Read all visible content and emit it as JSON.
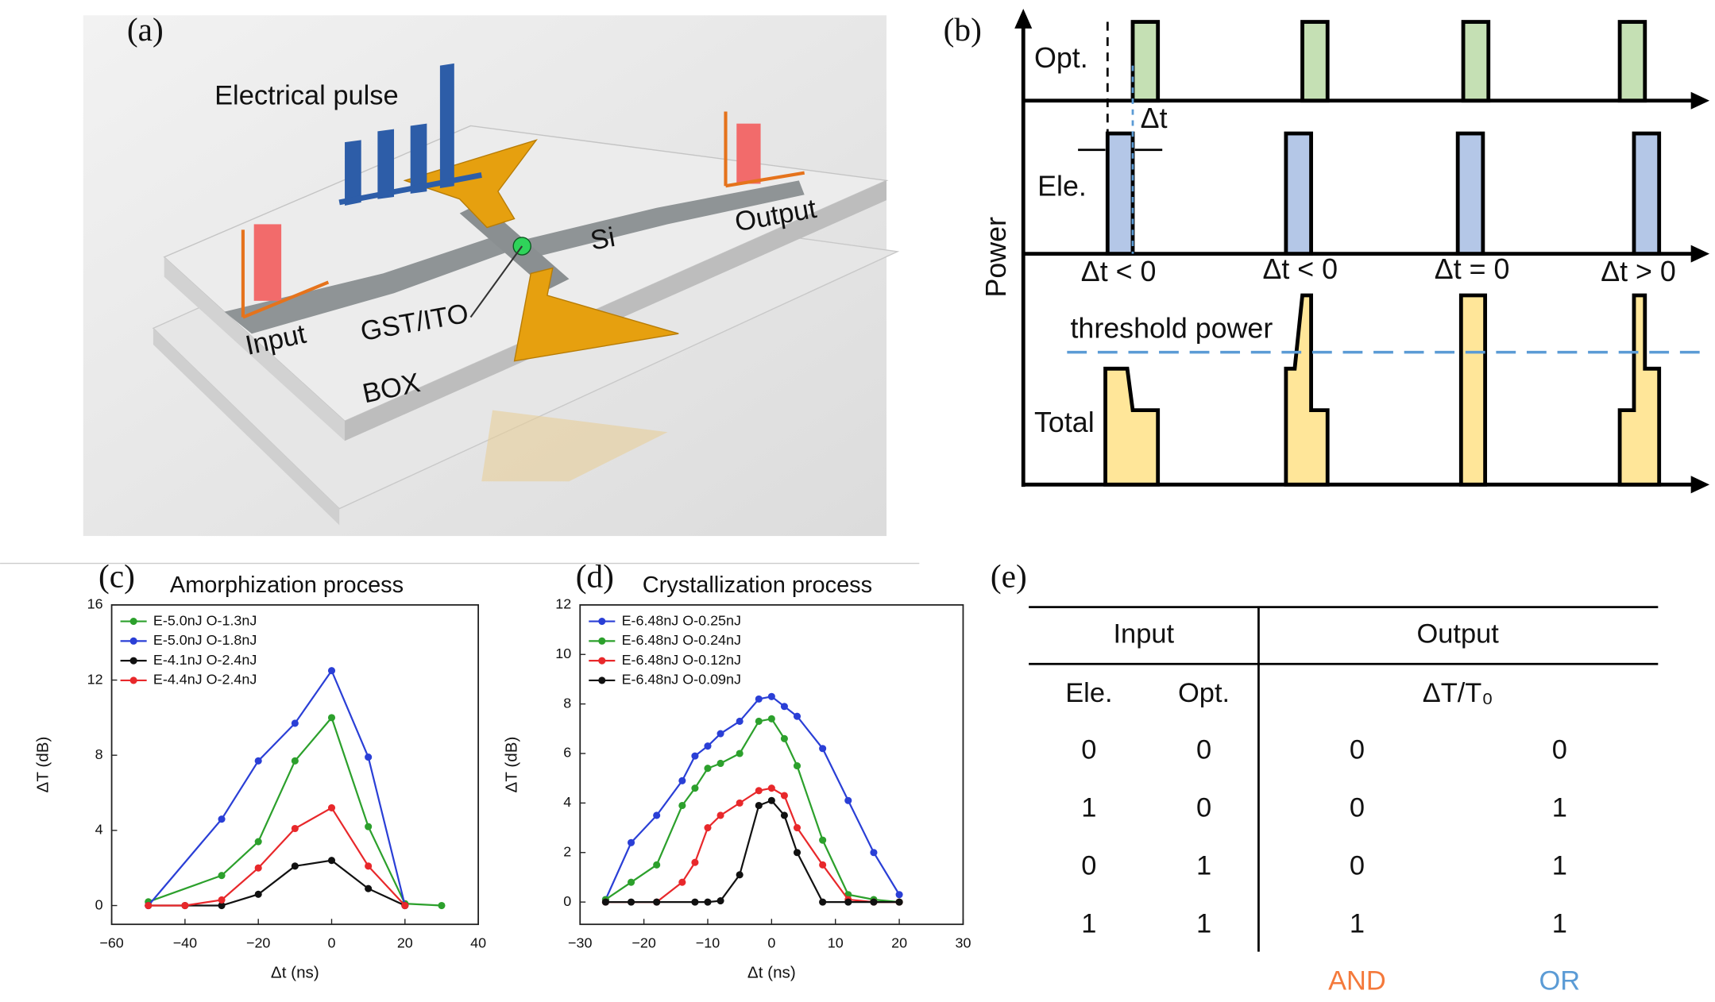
{
  "panel_a": {
    "label": "(a)",
    "electrical_pulse": "Electrical pulse",
    "output": "Output",
    "si": "Si",
    "gst": "GST/ITO",
    "input": "Input",
    "box": "BOX"
  },
  "panel_b": {
    "label": "(b)",
    "y_label": "Power",
    "rows": [
      "Opt.",
      "Ele.",
      "Total"
    ],
    "delta_t": "Δt",
    "conditions": [
      "Δt < 0",
      "Δt < 0",
      "Δt = 0",
      "Δt > 0"
    ],
    "threshold": "threshold power"
  },
  "chart_data": [
    {
      "type": "line",
      "label": "(c)",
      "title": "Amorphization process",
      "x_label": "Δt (ns)",
      "y_label": "ΔT (dB)",
      "legend": "upper left",
      "xlim": [
        -60,
        40
      ],
      "xticks": [
        {
          "value": -60,
          "label": "−60"
        },
        {
          "value": -40,
          "label": "−40"
        },
        {
          "value": -20,
          "label": "−20"
        },
        0,
        20,
        40
      ],
      "ylim": [
        -1,
        16
      ],
      "yticks": [
        0,
        4,
        8,
        12,
        16
      ],
      "series": [
        {
          "name": "E-5.0nJ O-1.3nJ",
          "color": "#2ca02c",
          "x": [
            -50,
            -30,
            -20,
            -10,
            0,
            10,
            20,
            30
          ],
          "values": [
            0.2,
            1.6,
            3.4,
            7.7,
            10,
            4.2,
            0.1,
            0
          ]
        },
        {
          "name": "E-5.0nJ O-1.8nJ",
          "color": "#2a3fd6",
          "x": [
            -50,
            -30,
            -20,
            -10,
            0,
            10,
            20
          ],
          "values": [
            0,
            4.6,
            7.7,
            9.7,
            12.5,
            7.9,
            0
          ]
        },
        {
          "name": "E-4.1nJ O-2.4nJ",
          "color": "#111111",
          "x": [
            -50,
            -40,
            -30,
            -20,
            -10,
            0,
            10,
            20
          ],
          "values": [
            0,
            0,
            0,
            0.6,
            2.1,
            2.4,
            0.9,
            0
          ]
        },
        {
          "name": "E-4.4nJ O-2.4nJ",
          "color": "#e8282b",
          "x": [
            -50,
            -40,
            -30,
            -20,
            -10,
            0,
            10,
            20
          ],
          "values": [
            0,
            0,
            0.3,
            2,
            4.1,
            5.2,
            2.1,
            0
          ]
        }
      ]
    },
    {
      "type": "line",
      "label": "(d)",
      "title": "Crystallization process",
      "x_label": "Δt (ns)",
      "y_label": "ΔT (dB)",
      "legend": "upper left",
      "xlim": [
        -30,
        30
      ],
      "xticks": [
        {
          "value": -30,
          "label": "−30"
        },
        {
          "value": -20,
          "label": "−20"
        },
        {
          "value": -10,
          "label": "−10"
        },
        0,
        10,
        20,
        30
      ],
      "ylim": [
        -0.9,
        12
      ],
      "yticks": [
        0,
        2,
        4,
        6,
        8,
        10,
        12
      ],
      "series": [
        {
          "name": "E-6.48nJ O-0.25nJ",
          "color": "#2a3fd6",
          "x": [
            -26,
            -22,
            -18,
            -14,
            -12,
            -10,
            -8,
            -5,
            -2,
            0,
            2,
            4,
            8,
            12,
            16,
            20
          ],
          "values": [
            0.1,
            2.4,
            3.5,
            4.9,
            5.9,
            6.3,
            6.8,
            7.3,
            8.2,
            8.3,
            7.9,
            7.5,
            6.2,
            4.1,
            2,
            0.3
          ]
        },
        {
          "name": "E-6.48nJ O-0.24nJ",
          "color": "#2ca02c",
          "x": [
            -26,
            -22,
            -18,
            -14,
            -12,
            -10,
            -8,
            -5,
            -2,
            0,
            2,
            4,
            8,
            12,
            16,
            20
          ],
          "values": [
            0.1,
            0.8,
            1.5,
            3.9,
            4.6,
            5.4,
            5.6,
            6,
            7.3,
            7.4,
            6.6,
            5.5,
            2.5,
            0.3,
            0.1,
            0
          ]
        },
        {
          "name": "E-6.48nJ O-0.12nJ",
          "color": "#e8282b",
          "x": [
            -26,
            -18,
            -14,
            -12,
            -10,
            -8,
            -5,
            -2,
            0,
            2,
            4,
            8,
            12,
            16,
            20
          ],
          "values": [
            0,
            0,
            0.8,
            1.6,
            3,
            3.5,
            4,
            4.5,
            4.6,
            4.3,
            3,
            1.5,
            0.1,
            0,
            0
          ]
        },
        {
          "name": "E-6.48nJ O-0.09nJ",
          "color": "#111111",
          "x": [
            -26,
            -22,
            -18,
            -12,
            -10,
            -8,
            -5,
            -2,
            0,
            2,
            4,
            8,
            12,
            16,
            20
          ],
          "values": [
            0,
            0,
            0,
            0,
            0,
            0.05,
            1.1,
            3.9,
            4.1,
            3.5,
            2,
            0,
            0,
            0,
            0
          ]
        }
      ]
    }
  ],
  "table": {
    "label": "(e)",
    "groups": [
      "Input",
      "Output"
    ],
    "columns": [
      "Ele.",
      "Opt.",
      "ΔT/T₀"
    ],
    "rows": [
      [
        "0",
        "0",
        "0",
        "0"
      ],
      [
        "1",
        "0",
        "0",
        "1"
      ],
      [
        "0",
        "1",
        "0",
        "1"
      ],
      [
        "1",
        "1",
        "1",
        "1"
      ]
    ],
    "footer": [
      "AND",
      "OR"
    ]
  }
}
